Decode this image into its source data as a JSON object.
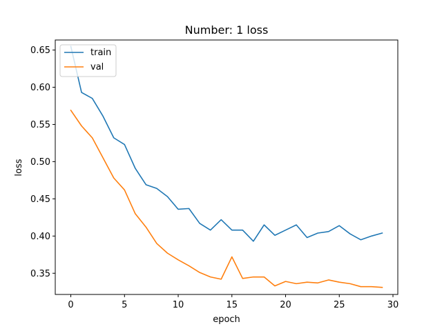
{
  "chart_data": {
    "type": "line",
    "title": "Number: 1 loss",
    "xlabel": "epoch",
    "ylabel": "loss",
    "xlim": [
      -1.45,
      30.45
    ],
    "ylim": [
      0.3215,
      0.6635
    ],
    "xticks": [
      0,
      5,
      10,
      15,
      20,
      25,
      30
    ],
    "yticks": [
      0.35,
      0.4,
      0.45,
      0.5,
      0.55,
      0.6,
      0.65
    ],
    "grid": false,
    "legend_position": "top-left",
    "x": [
      0,
      1,
      2,
      3,
      4,
      5,
      6,
      7,
      8,
      9,
      10,
      11,
      12,
      13,
      14,
      15,
      16,
      17,
      18,
      19,
      20,
      21,
      22,
      23,
      24,
      25,
      26,
      27,
      28,
      29
    ],
    "series": [
      {
        "name": "train",
        "color": "#1f77b4",
        "values": [
          0.655,
          0.593,
          0.585,
          0.561,
          0.532,
          0.523,
          0.491,
          0.469,
          0.464,
          0.453,
          0.436,
          0.437,
          0.417,
          0.408,
          0.422,
          0.408,
          0.408,
          0.393,
          0.415,
          0.401,
          0.408,
          0.415,
          0.398,
          0.404,
          0.406,
          0.414,
          0.403,
          0.395,
          0.4,
          0.404
        ]
      },
      {
        "name": "val",
        "color": "#ff7f0e",
        "values": [
          0.569,
          0.548,
          0.532,
          0.505,
          0.478,
          0.462,
          0.43,
          0.412,
          0.39,
          0.377,
          0.368,
          0.36,
          0.351,
          0.345,
          0.342,
          0.372,
          0.343,
          0.345,
          0.345,
          0.333,
          0.339,
          0.336,
          0.338,
          0.337,
          0.341,
          0.338,
          0.336,
          0.332,
          0.332,
          0.331
        ]
      }
    ]
  }
}
